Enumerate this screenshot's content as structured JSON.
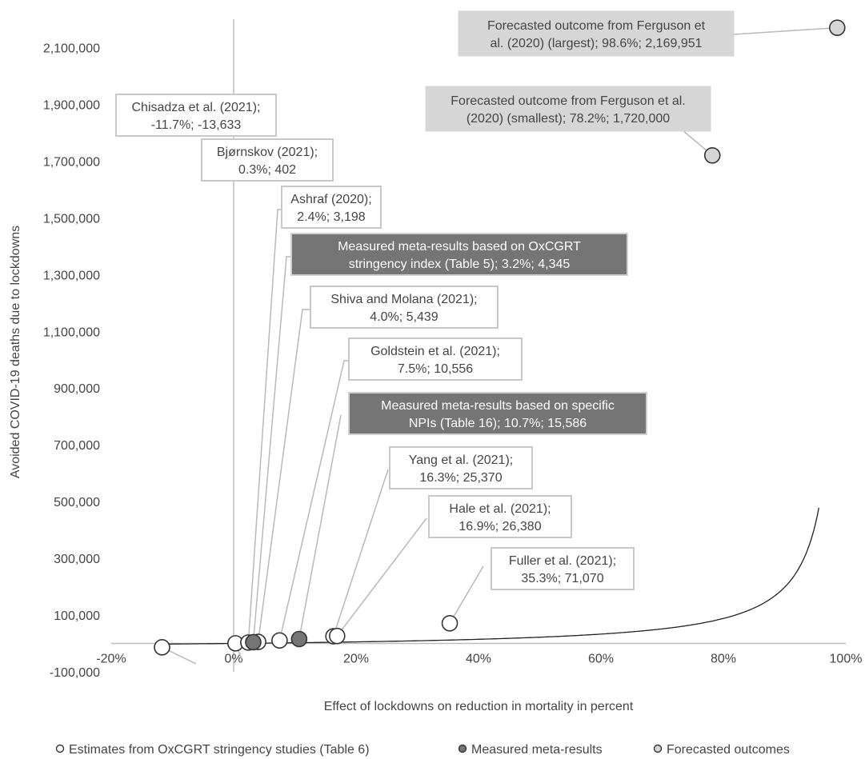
{
  "chart_data": {
    "type": "scatter",
    "xlabel": "Effect of lockdowns on reduction in mortality in percent",
    "ylabel": "Avoided COVID-19 deaths due to lockdowns",
    "xlim": [
      -0.2,
      1.0
    ],
    "ylim": [
      -100000,
      2200000
    ],
    "x_ticks": [
      -0.2,
      0,
      0.2,
      0.4,
      0.6,
      0.8,
      1.0
    ],
    "x_tick_labels": [
      "-20%",
      "0%",
      "20%",
      "40%",
      "60%",
      "80%",
      "100%"
    ],
    "y_ticks": [
      -100000,
      100000,
      300000,
      500000,
      700000,
      900000,
      1100000,
      1300000,
      1500000,
      1700000,
      1900000,
      2100000
    ],
    "y_tick_labels": [
      "-100,000",
      "100,000",
      "300,000",
      "500,000",
      "700,000",
      "900,000",
      "1,100,000",
      "1,300,000",
      "1,500,000",
      "1,700,000",
      "1,900,000",
      "2,100,000"
    ],
    "curve": "y = k·x/(1−x) reference curve",
    "grid": false,
    "legend_position": "bottom",
    "series": [
      {
        "name": "Estimates from OxCGRT stringency studies (Table 6)",
        "color": "#ffffff",
        "points": [
          {
            "label_lines": [
              "Chisadza et al. (2021);",
              "-11.7%; -13,633"
            ],
            "x": -0.117,
            "y": -13633
          },
          {
            "label_lines": [
              "Bjørnskov (2021);",
              "0.3%; 402"
            ],
            "x": 0.003,
            "y": 402
          },
          {
            "label_lines": [
              "Ashraf (2020);",
              "2.4%; 3,198"
            ],
            "x": 0.024,
            "y": 3198
          },
          {
            "label_lines": [
              "Shiva and Molana (2021);",
              "4.0%; 5,439"
            ],
            "x": 0.04,
            "y": 5439
          },
          {
            "label_lines": [
              "Goldstein et al. (2021);",
              "7.5%; 10,556"
            ],
            "x": 0.075,
            "y": 10556
          },
          {
            "label_lines": [
              "Yang et al. (2021);",
              "16.3%; 25,370"
            ],
            "x": 0.163,
            "y": 25370
          },
          {
            "label_lines": [
              "Hale et al. (2021);",
              "16.9%; 26,380"
            ],
            "x": 0.169,
            "y": 26380
          },
          {
            "label_lines": [
              "Fuller et al. (2021);",
              "35.3%; 71,070"
            ],
            "x": 0.353,
            "y": 71070
          }
        ]
      },
      {
        "name": "Measured meta-results",
        "color": "#757575",
        "points": [
          {
            "label_lines": [
              "Measured meta-results based on OxCGRT",
              "stringency index (Table 5); 3.2%; 4,345"
            ],
            "x": 0.032,
            "y": 4345
          },
          {
            "label_lines": [
              "Measured meta-results based on specific",
              "NPIs (Table 16); 10.7%; 15,586"
            ],
            "x": 0.107,
            "y": 15586
          }
        ]
      },
      {
        "name": "Forecasted outcomes",
        "color": "#d6d6d6",
        "points": [
          {
            "label_lines": [
              "Forecasted outcome from Ferguson et",
              "al. (2020) (largest); 98.6%; 2,169,951"
            ],
            "x": 0.986,
            "y": 2169951
          },
          {
            "label_lines": [
              "Forecasted outcome from Ferguson et al.",
              "(2020) (smallest); 78.2%; 1,720,000"
            ],
            "x": 0.782,
            "y": 1720000
          }
        ]
      }
    ]
  }
}
